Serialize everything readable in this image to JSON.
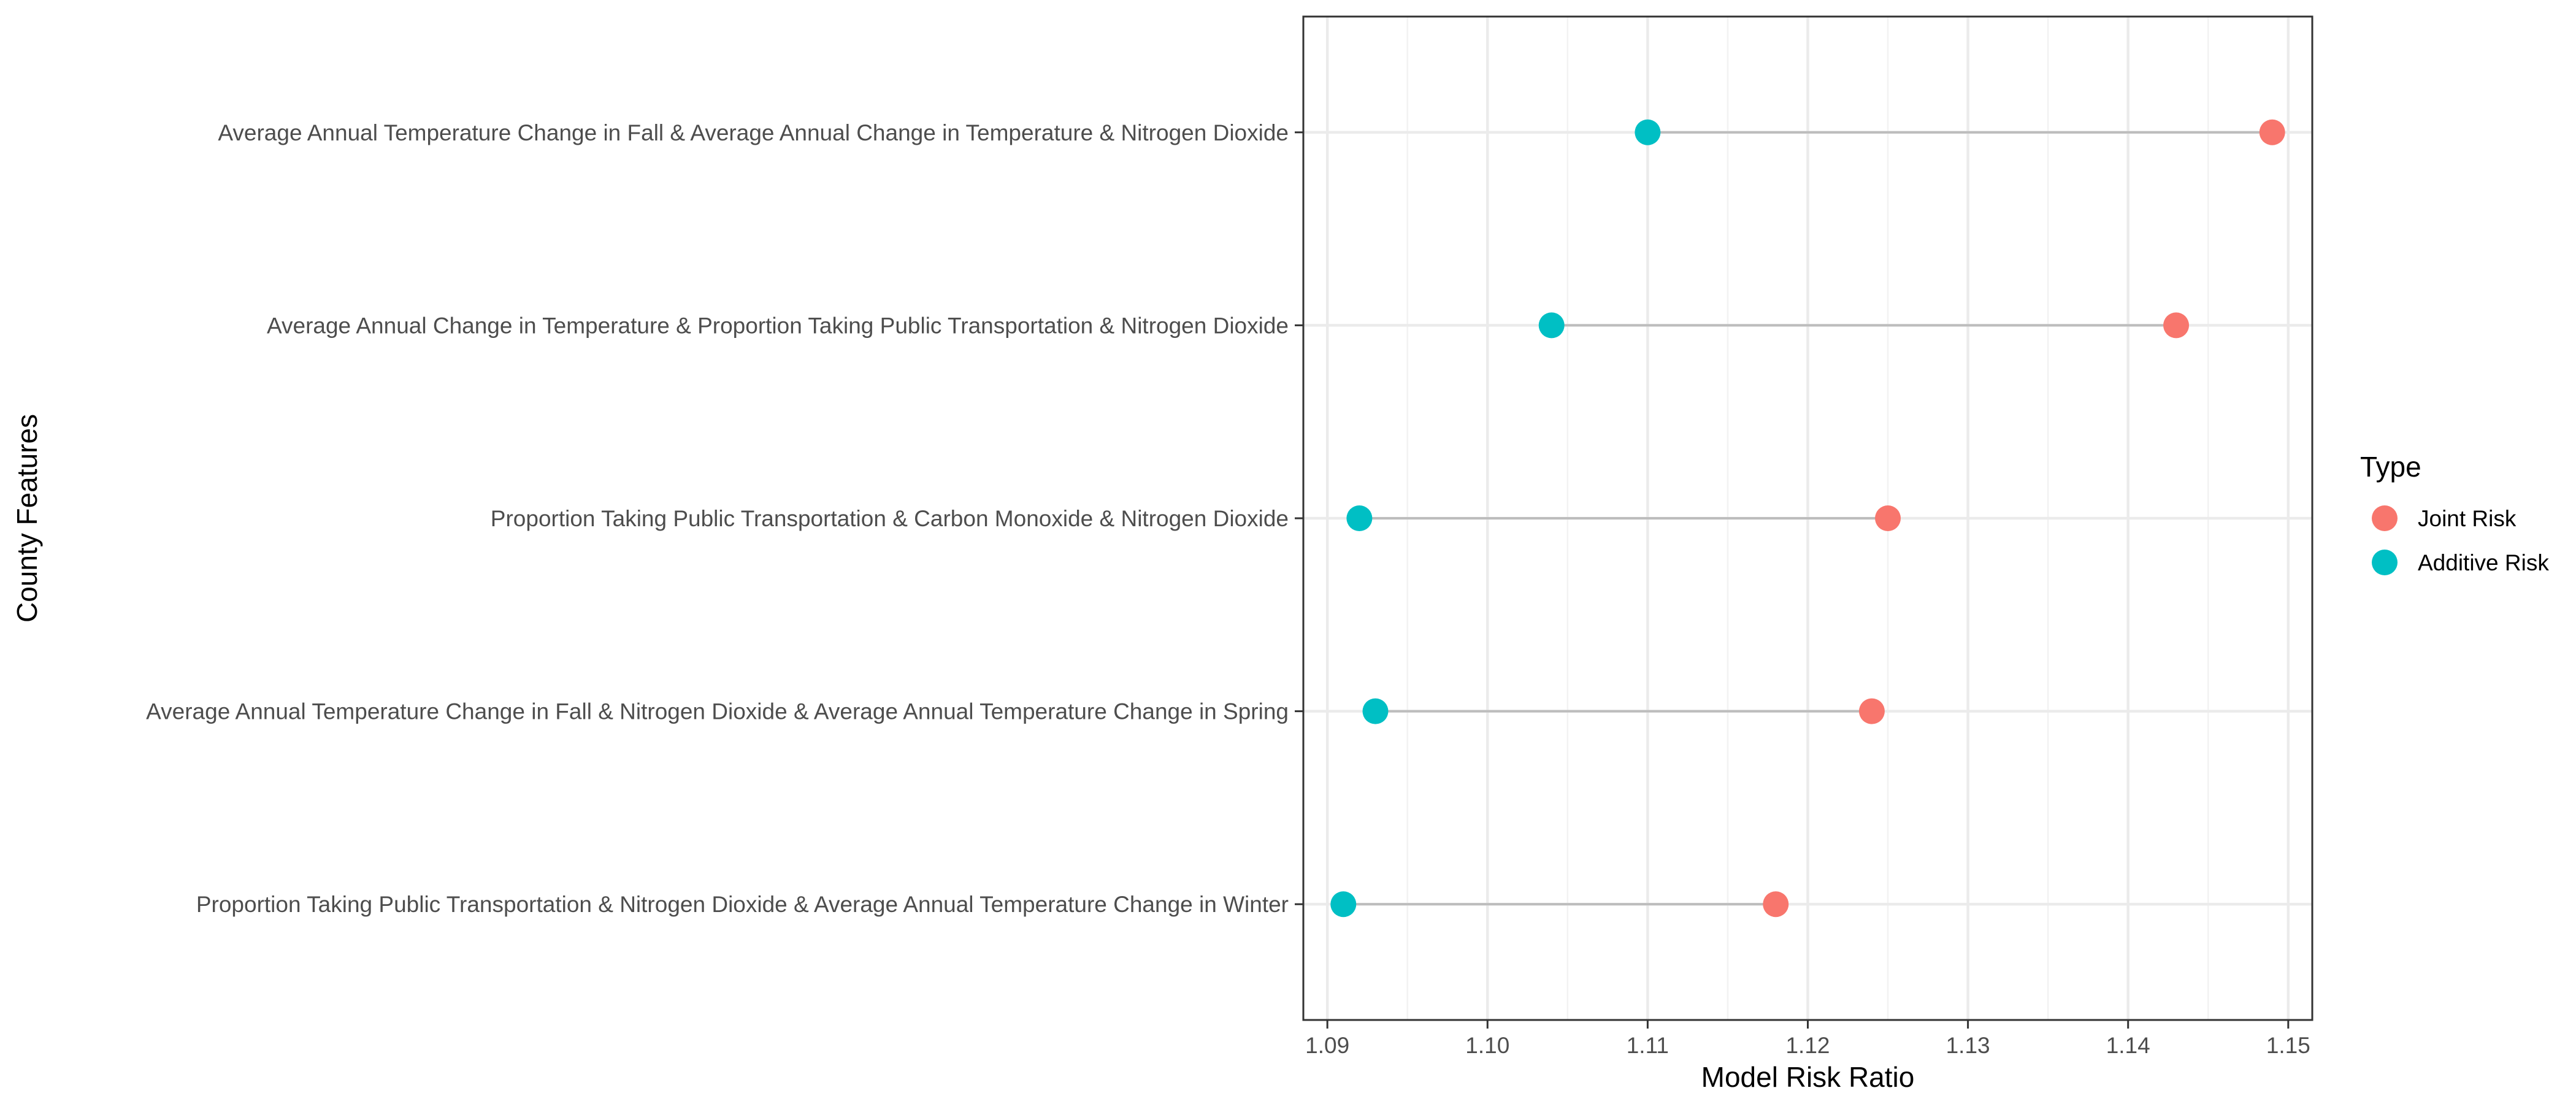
{
  "chart_data": {
    "type": "scatter",
    "subtype": "dumbbell",
    "title": "",
    "xlabel": "Model Risk Ratio",
    "ylabel": "County Features",
    "xlim": [
      1.0885,
      1.1515
    ],
    "x_ticks": [
      "1.09",
      "1.10",
      "1.11",
      "1.12",
      "1.13",
      "1.14",
      "1.15"
    ],
    "grid": true,
    "legend": {
      "title": "Type",
      "position": "right"
    },
    "categories": [
      "Average Annual Temperature Change in Fall & Average Annual Change in Temperature & Nitrogen Dioxide",
      "Average Annual Change in Temperature & Proportion Taking Public Transportation & Nitrogen Dioxide",
      "Proportion Taking Public Transportation & Carbon Monoxide & Nitrogen Dioxide",
      "Average Annual Temperature Change in Fall & Nitrogen Dioxide & Average Annual Temperature Change in Spring",
      "Proportion Taking Public Transportation & Nitrogen Dioxide & Average Annual Temperature Change in Winter"
    ],
    "series": [
      {
        "name": "Joint Risk",
        "color": "#F8766D",
        "values": [
          1.149,
          1.143,
          1.125,
          1.124,
          1.118
        ]
      },
      {
        "name": "Additive Risk",
        "color": "#00BFC4",
        "values": [
          1.11,
          1.104,
          1.092,
          1.093,
          1.091
        ]
      }
    ],
    "connector_color": "#bdbdbd"
  }
}
